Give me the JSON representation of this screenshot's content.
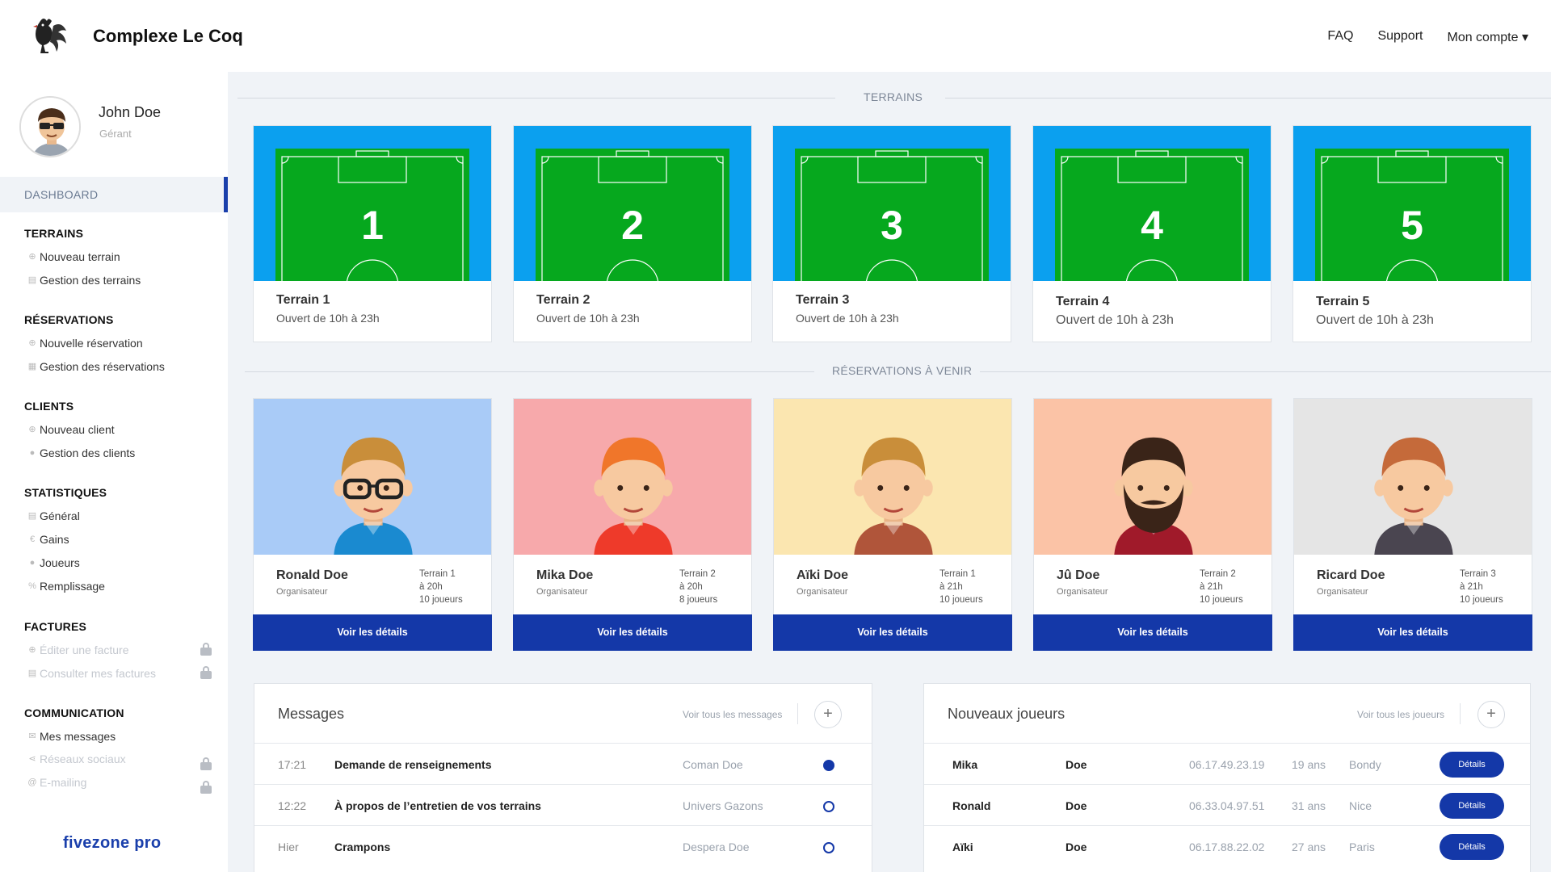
{
  "header": {
    "brand": "Complexe Le Coq",
    "nav": [
      "FAQ",
      "Support",
      "Mon compte ▾"
    ]
  },
  "user": {
    "name": "John Doe",
    "role": "Gérant"
  },
  "sidebar": {
    "dashboard": "DASHBOARD",
    "sections": [
      {
        "title": "TERRAINS",
        "items": [
          {
            "icon": "plus-circle-icon",
            "label": "Nouveau terrain"
          },
          {
            "icon": "document-icon",
            "label": "Gestion des terrains"
          }
        ]
      },
      {
        "title": "RÉSERVATIONS",
        "items": [
          {
            "icon": "plus-circle-icon",
            "label": "Nouvelle réservation"
          },
          {
            "icon": "calendar-icon",
            "label": "Gestion des réservations"
          }
        ]
      },
      {
        "title": "CLIENTS",
        "items": [
          {
            "icon": "plus-circle-icon",
            "label": "Nouveau client"
          },
          {
            "icon": "user-icon",
            "label": "Gestion des clients"
          }
        ]
      },
      {
        "title": "STATISTIQUES",
        "items": [
          {
            "icon": "document-icon",
            "label": "Général"
          },
          {
            "icon": "euro-icon",
            "label": "Gains"
          },
          {
            "icon": "user-icon",
            "label": "Joueurs"
          },
          {
            "icon": "percent-icon",
            "label": "Remplissage"
          }
        ]
      },
      {
        "title": "FACTURES",
        "items": [
          {
            "icon": "plus-circle-icon",
            "label": "Éditer une facture"
          },
          {
            "icon": "document-icon",
            "label": "Consulter mes factures"
          }
        ]
      },
      {
        "title": "COMMUNICATION",
        "items": [
          {
            "icon": "mail-icon",
            "label": "Mes messages"
          },
          {
            "icon": "share-icon",
            "label": "Réseaux sociaux"
          },
          {
            "icon": "at-icon",
            "label": "E-mailing"
          }
        ]
      }
    ],
    "footer": "fivezone pro"
  },
  "terrains_title": "TERRAINS",
  "terrains": [
    {
      "number": "1",
      "name": "Terrain 1",
      "hours": "Ouvert de 10h à 23h"
    },
    {
      "number": "2",
      "name": "Terrain 2",
      "hours": "Ouvert de 10h à 23h"
    },
    {
      "number": "3",
      "name": "Terrain 3",
      "hours": "Ouvert de 10h à 23h"
    },
    {
      "number": "4",
      "name": "Terrain 4",
      "hours": "Ouvert de 10h à 23h"
    },
    {
      "number": "5",
      "name": "Terrain 5",
      "hours": "Ouvert de 10h à 23h"
    }
  ],
  "reservations_title": "RÉSERVATIONS À VENIR",
  "reservations": [
    {
      "name": "Ronald Doe",
      "role": "Organisateur",
      "terrain": "Terrain 1",
      "time": "à 20h",
      "players": "10 joueurs",
      "button": "Voir les détails",
      "bg": "#a9cbf7"
    },
    {
      "name": "Mika Doe",
      "role": "Organisateur",
      "terrain": "Terrain 2",
      "time": "à 20h",
      "players": "8 joueurs",
      "button": "Voir les détails",
      "bg": "#f7a9ab"
    },
    {
      "name": "Aïki Doe",
      "role": "Organisateur",
      "terrain": "Terrain 1",
      "time": "à 21h",
      "players": "10 joueurs",
      "button": "Voir les détails",
      "bg": "#fbe6b0"
    },
    {
      "name": "Jû Doe",
      "role": "Organisateur",
      "terrain": "Terrain 2",
      "time": "à 21h",
      "players": "10 joueurs",
      "button": "Voir les détails",
      "bg": "#fbc3a6"
    },
    {
      "name": "Ricard Doe",
      "role": "Organisateur",
      "terrain": "Terrain 3",
      "time": "à 21h",
      "players": "10 joueurs",
      "button": "Voir les détails",
      "bg": "#e5e5e5"
    }
  ],
  "messages": {
    "title": "Messages",
    "link": "Voir tous les messages",
    "rows": [
      {
        "time": "17:21",
        "subject": "Demande de renseignements",
        "from": "Coman Doe",
        "unread": true
      },
      {
        "time": "12:22",
        "subject": "À propos de l’entretien de vos terrains",
        "from": "Univers Gazons",
        "unread": false
      },
      {
        "time": "Hier",
        "subject": "Crampons",
        "from": "Despera Doe",
        "unread": false
      }
    ]
  },
  "players": {
    "title": "Nouveaux joueurs",
    "link": "Voir tous les joueurs",
    "button": "Détails",
    "rows": [
      {
        "first": "Mika",
        "last": "Doe",
        "phone": "06.17.49.23.19",
        "age": "19 ans",
        "city": "Bondy"
      },
      {
        "first": "Ronald",
        "last": "Doe",
        "phone": "06.33.04.97.51",
        "age": "31 ans",
        "city": "Nice"
      },
      {
        "first": "Aïki",
        "last": "Doe",
        "phone": "06.17.88.22.02",
        "age": "27 ans",
        "city": "Paris"
      }
    ]
  }
}
